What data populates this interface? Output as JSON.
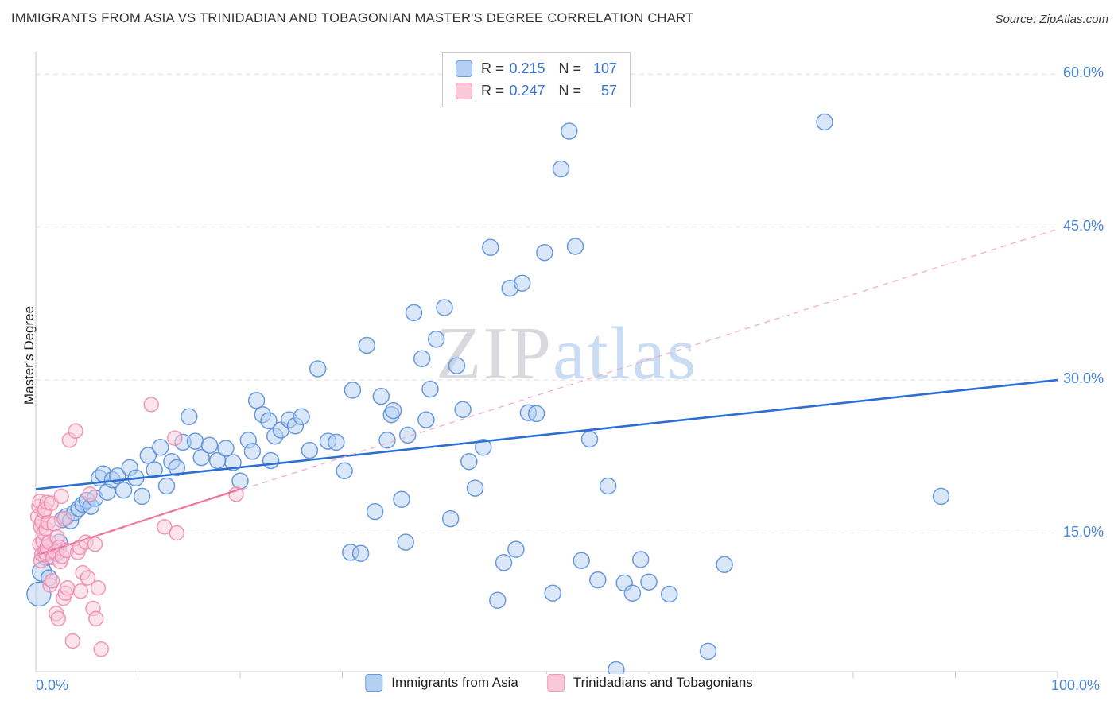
{
  "header": {
    "title": "IMMIGRANTS FROM ASIA VS TRINIDADIAN AND TOBAGONIAN MASTER'S DEGREE CORRELATION CHART",
    "source": "Source: ZipAtlas.com"
  },
  "legend_box": {
    "rows": [
      {
        "series": "Immigrants from Asia",
        "r_label": "R =",
        "r_value": "0.215",
        "n_label": "N =",
        "n_value": "107"
      },
      {
        "series": "Trinidadians and Tobagonians",
        "r_label": "R =",
        "r_value": "0.247",
        "n_label": "N =",
        "n_value": "57"
      }
    ]
  },
  "axes": {
    "y_axis_title": "Master's Degree",
    "y_ticks": [
      "60.0%",
      "45.0%",
      "30.0%",
      "15.0%"
    ],
    "x_min": "0.0%",
    "x_max": "100.0%"
  },
  "watermark": {
    "zip": "ZIP",
    "atlas": "atlas"
  },
  "bottom_legend": [
    {
      "label": "Immigrants from Asia"
    },
    {
      "label": "Trinidadians and Tobagonians"
    }
  ],
  "colors": {
    "accent_blue": "#3b74d9",
    "axis_label": "#4a86d8",
    "gridline": "#e0e0e0",
    "axis": "#c9c9c9",
    "watermark_zip": "#d8d8de",
    "watermark_atlas": "#c9dcf4"
  },
  "chart_data": {
    "type": "scatter",
    "title": "IMMIGRANTS FROM ASIA VS TRINIDADIAN AND TOBAGONIAN MASTER'S DEGREE CORRELATION CHART",
    "xlabel": "Immigrants from Asia (%)",
    "ylabel": "Master's Degree",
    "x_range": [
      0,
      100
    ],
    "y_range": [
      0,
      62
    ],
    "x_unit": "%",
    "y_unit": "%",
    "grid": "horizontal-dashed",
    "y_gridlines": [
      15,
      30,
      45,
      60
    ],
    "x_tick_step": 10,
    "legend_position": "bottom-center",
    "series": [
      {
        "name": "Immigrants from Asia",
        "R": 0.215,
        "N": 107,
        "fill": "#b3d0f2",
        "stroke": "#5b8fd9",
        "marker_radius": 10,
        "point_name": "data-point-asia",
        "points": [
          [
            0.3,
            9.0,
            15
          ],
          [
            0.6,
            11.2,
            12
          ],
          [
            1.0,
            12.6
          ],
          [
            1.3,
            10.6
          ],
          [
            1.6,
            13.2
          ],
          [
            2.0,
            13.0
          ],
          [
            2.3,
            14.1
          ],
          [
            2.6,
            16.3
          ],
          [
            3.0,
            16.6
          ],
          [
            3.4,
            16.2
          ],
          [
            3.8,
            17.0
          ],
          [
            4.2,
            17.4
          ],
          [
            4.6,
            17.8
          ],
          [
            5.0,
            18.2
          ],
          [
            5.4,
            17.6
          ],
          [
            5.8,
            18.4
          ],
          [
            6.2,
            20.4
          ],
          [
            6.6,
            20.8
          ],
          [
            7.0,
            19.0
          ],
          [
            7.5,
            20.2
          ],
          [
            8.0,
            20.6
          ],
          [
            8.6,
            19.2
          ],
          [
            9.2,
            21.4
          ],
          [
            9.8,
            20.4
          ],
          [
            10.4,
            18.6
          ],
          [
            11.0,
            22.6
          ],
          [
            11.6,
            21.2
          ],
          [
            12.2,
            23.4
          ],
          [
            12.8,
            19.6
          ],
          [
            13.3,
            22.0
          ],
          [
            13.8,
            21.4
          ],
          [
            14.4,
            23.9
          ],
          [
            15.0,
            26.4
          ],
          [
            15.6,
            24.0
          ],
          [
            16.2,
            22.4
          ],
          [
            17.0,
            23.6
          ],
          [
            17.8,
            22.1
          ],
          [
            18.6,
            23.3
          ],
          [
            19.3,
            21.9
          ],
          [
            20.0,
            20.1
          ],
          [
            20.8,
            24.1
          ],
          [
            21.2,
            23.0
          ],
          [
            21.6,
            28.0
          ],
          [
            22.2,
            26.6
          ],
          [
            22.8,
            26.0
          ],
          [
            23.0,
            22.1
          ],
          [
            23.4,
            24.5
          ],
          [
            24.0,
            25.1
          ],
          [
            24.8,
            26.1
          ],
          [
            25.4,
            25.5
          ],
          [
            26.0,
            26.4
          ],
          [
            26.8,
            23.1
          ],
          [
            27.6,
            31.1
          ],
          [
            28.6,
            24.0
          ],
          [
            29.4,
            23.9
          ],
          [
            30.2,
            21.1
          ],
          [
            30.8,
            13.1
          ],
          [
            31.0,
            29.0
          ],
          [
            32.4,
            33.4
          ],
          [
            33.2,
            17.1
          ],
          [
            33.8,
            28.4
          ],
          [
            34.4,
            24.1
          ],
          [
            34.8,
            26.6
          ],
          [
            35.0,
            27.0
          ],
          [
            35.8,
            18.3
          ],
          [
            36.2,
            14.1
          ],
          [
            36.4,
            24.6
          ],
          [
            37.0,
            36.6
          ],
          [
            37.8,
            32.1
          ],
          [
            38.2,
            26.1
          ],
          [
            38.6,
            29.1
          ],
          [
            39.2,
            34.0
          ],
          [
            40.0,
            37.1
          ],
          [
            40.6,
            16.4
          ],
          [
            41.2,
            31.4
          ],
          [
            41.8,
            27.1
          ],
          [
            42.4,
            22.0
          ],
          [
            43.0,
            19.4
          ],
          [
            43.8,
            23.4
          ],
          [
            44.5,
            43.0
          ],
          [
            45.2,
            8.4
          ],
          [
            45.8,
            12.1
          ],
          [
            46.4,
            39.0
          ],
          [
            47.0,
            13.4
          ],
          [
            47.6,
            39.5
          ],
          [
            48.2,
            26.8
          ],
          [
            49.0,
            26.7
          ],
          [
            49.8,
            42.5
          ],
          [
            50.6,
            9.1
          ],
          [
            51.4,
            50.7
          ],
          [
            52.2,
            54.4
          ],
          [
            52.8,
            43.1
          ],
          [
            53.4,
            12.3
          ],
          [
            54.2,
            24.2
          ],
          [
            55.0,
            10.4
          ],
          [
            56.0,
            19.6
          ],
          [
            56.8,
            1.6
          ],
          [
            57.6,
            10.1
          ],
          [
            58.4,
            9.1
          ],
          [
            59.2,
            12.4
          ],
          [
            60.0,
            10.2
          ],
          [
            62.0,
            9.0
          ],
          [
            65.8,
            3.4
          ],
          [
            67.4,
            11.9
          ],
          [
            77.2,
            55.3
          ],
          [
            88.6,
            18.6
          ],
          [
            31.8,
            13.0
          ]
        ]
      },
      {
        "name": "Trinidadians and Tobagonians",
        "R": 0.247,
        "N": 57,
        "fill": "#f9c9da",
        "stroke": "#f08cb0",
        "marker_radius": 9,
        "point_name": "data-point-trinidad",
        "points": [
          [
            0.2,
            16.6
          ],
          [
            0.3,
            17.6
          ],
          [
            0.4,
            18.1
          ],
          [
            0.4,
            13.9
          ],
          [
            0.5,
            15.6
          ],
          [
            0.5,
            12.3
          ],
          [
            0.6,
            16.1
          ],
          [
            0.6,
            12.9
          ],
          [
            0.7,
            14.2
          ],
          [
            0.8,
            17.1
          ],
          [
            0.8,
            15.0
          ],
          [
            0.9,
            13.1
          ],
          [
            0.9,
            17.3
          ],
          [
            1.0,
            12.9
          ],
          [
            1.0,
            15.4
          ],
          [
            1.1,
            13.6
          ],
          [
            1.1,
            18.0
          ],
          [
            1.2,
            16.0
          ],
          [
            1.3,
            14.1
          ],
          [
            1.4,
            9.9
          ],
          [
            1.5,
            17.9
          ],
          [
            1.6,
            10.3
          ],
          [
            1.7,
            12.6
          ],
          [
            1.8,
            15.9
          ],
          [
            1.9,
            13.1
          ],
          [
            2.0,
            7.1
          ],
          [
            2.1,
            14.6
          ],
          [
            2.2,
            6.6
          ],
          [
            2.3,
            13.6
          ],
          [
            2.4,
            12.2
          ],
          [
            2.5,
            18.6
          ],
          [
            2.6,
            12.7
          ],
          [
            2.7,
            8.6
          ],
          [
            2.9,
            9.1
          ],
          [
            3.0,
            13.3
          ],
          [
            3.1,
            9.6
          ],
          [
            3.3,
            24.1
          ],
          [
            3.6,
            4.4
          ],
          [
            3.9,
            25.0
          ],
          [
            4.1,
            13.1
          ],
          [
            4.3,
            13.6
          ],
          [
            4.4,
            9.3
          ],
          [
            4.6,
            11.1
          ],
          [
            4.9,
            14.1
          ],
          [
            5.1,
            10.6
          ],
          [
            5.3,
            18.8
          ],
          [
            5.6,
            7.6
          ],
          [
            5.8,
            13.9
          ],
          [
            5.9,
            6.6
          ],
          [
            6.1,
            9.6
          ],
          [
            6.4,
            3.6
          ],
          [
            11.3,
            27.6
          ],
          [
            12.6,
            15.6
          ],
          [
            13.6,
            24.3
          ],
          [
            13.8,
            15.0
          ],
          [
            19.6,
            18.8
          ],
          [
            2.8,
            16.4
          ]
        ]
      }
    ],
    "trend_lines": [
      {
        "series": "Immigrants from Asia",
        "style": "solid",
        "color": "#2a6fd4",
        "width": 2.6,
        "x1": 0,
        "y1": 19.3,
        "x2": 100,
        "y2": 30.0
      },
      {
        "series": "Trinidadians and Tobagonians",
        "style": "solid",
        "color": "#ee6d99",
        "width": 2.2,
        "x1": 0,
        "y1": 12.8,
        "x2": 20,
        "y2": 19.3
      },
      {
        "series": "Trinidadians and Tobagonians",
        "style": "dashed",
        "color": "#f2a9c0",
        "width": 1.2,
        "x1": 0,
        "y1": 12.8,
        "x2": 100,
        "y2": 44.8
      }
    ]
  }
}
